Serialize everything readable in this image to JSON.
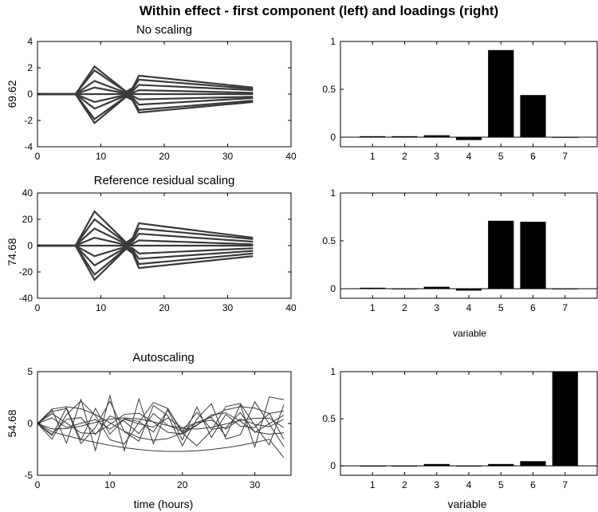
{
  "figure": {
    "title": "Within effect - first component (left) and loadings (right)",
    "line_color": "#3a3a3a",
    "bar_color": "#000000"
  },
  "chart_data": [
    {
      "id": "p1",
      "type": "line",
      "title": "No scaling",
      "ylabel": "69.62",
      "xlabel": "",
      "xlim": [
        0,
        40
      ],
      "ylim": [
        -4,
        4
      ],
      "xticks": [
        0,
        10,
        20,
        30,
        40
      ],
      "yticks": [
        -4,
        -2,
        0,
        2,
        4
      ],
      "x": [
        0,
        1,
        2,
        3,
        4,
        5,
        6,
        7,
        8,
        9,
        10,
        11,
        12,
        13,
        14,
        15,
        16,
        17,
        18,
        19,
        20,
        21,
        22,
        23,
        24,
        25,
        26,
        27,
        28,
        29,
        30,
        31,
        32,
        33,
        34
      ],
      "series_amplitudes": [
        {
          "peak9": 2.1,
          "peak16": 1.4,
          "end": 0.5
        },
        {
          "peak9": 1.8,
          "peak16": 1.1,
          "end": 0.4
        },
        {
          "peak9": 1.0,
          "peak16": 0.7,
          "end": 0.3
        },
        {
          "peak9": 0.5,
          "peak16": 0.3,
          "end": 0.1
        },
        {
          "peak9": 0.0,
          "peak16": 0.0,
          "end": 0.0
        },
        {
          "peak9": -0.6,
          "peak16": -0.4,
          "end": -0.2
        },
        {
          "peak9": -1.1,
          "peak16": -0.8,
          "end": -0.3
        },
        {
          "peak9": -1.9,
          "peak16": -1.2,
          "end": -0.5
        },
        {
          "peak9": -2.2,
          "peak16": -1.4,
          "end": -0.6
        }
      ]
    },
    {
      "id": "p2",
      "type": "bar",
      "title": "",
      "xlabel": "",
      "categories": [
        1,
        2,
        3,
        4,
        5,
        6,
        7
      ],
      "values": [
        0.01,
        0.01,
        0.02,
        -0.03,
        0.91,
        0.44,
        0.0
      ],
      "xlim": [
        0,
        8
      ],
      "ylim": [
        -0.1,
        1
      ],
      "yticks": [
        0,
        0.5,
        1
      ]
    },
    {
      "id": "p3",
      "type": "line",
      "title": "Reference residual scaling",
      "ylabel": "74.68",
      "xlabel": "",
      "xlim": [
        0,
        40
      ],
      "ylim": [
        -40,
        40
      ],
      "xticks": [
        0,
        10,
        20,
        30,
        40
      ],
      "yticks": [
        -40,
        -20,
        0,
        20,
        40
      ],
      "x": [
        0,
        1,
        2,
        3,
        4,
        5,
        6,
        7,
        8,
        9,
        10,
        11,
        12,
        13,
        14,
        15,
        16,
        17,
        18,
        19,
        20,
        21,
        22,
        23,
        24,
        25,
        26,
        27,
        28,
        29,
        30,
        31,
        32,
        33,
        34
      ],
      "series_amplitudes": [
        {
          "peak9": 26,
          "peak16": 17,
          "end": 6
        },
        {
          "peak9": 20,
          "peak16": 13,
          "end": 5
        },
        {
          "peak9": 13,
          "peak16": 9,
          "end": 3
        },
        {
          "peak9": 6,
          "peak16": 4,
          "end": 1
        },
        {
          "peak9": 0,
          "peak16": 0,
          "end": 0
        },
        {
          "peak9": -8,
          "peak16": -6,
          "end": -2
        },
        {
          "peak9": -15,
          "peak16": -10,
          "end": -4
        },
        {
          "peak9": -22,
          "peak16": -14,
          "end": -6
        },
        {
          "peak9": -26,
          "peak16": -17,
          "end": -8
        }
      ]
    },
    {
      "id": "p4",
      "type": "bar",
      "title": "",
      "xlabel": "variable",
      "categories": [
        1,
        2,
        3,
        4,
        5,
        6,
        7
      ],
      "values": [
        0.01,
        0.0,
        0.02,
        -0.02,
        0.71,
        0.7,
        0.0
      ],
      "xlim": [
        0,
        8
      ],
      "ylim": [
        -0.1,
        1
      ],
      "yticks": [
        0,
        0.5,
        1
      ]
    },
    {
      "id": "p5",
      "type": "line",
      "title": "Autoscaling",
      "ylabel": "54.68",
      "xlabel": "time (hours)",
      "xlim": [
        0,
        35
      ],
      "ylim": [
        -5,
        5
      ],
      "xticks": [
        0,
        10,
        20,
        30
      ],
      "yticks": [
        -5,
        0,
        5
      ],
      "x": [
        0,
        2,
        4,
        6,
        8,
        10,
        12,
        14,
        16,
        18,
        20,
        22,
        24,
        26,
        28,
        30,
        32,
        34
      ],
      "series_amplitudes": [
        {
          "peak9": 3.0,
          "peak16": 2.0,
          "end": 2.3
        },
        {
          "peak9": 2.4,
          "peak16": 1.6,
          "end": 1.8
        },
        {
          "peak9": 1.8,
          "peak16": 1.2,
          "end": 1.2
        },
        {
          "peak9": 1.2,
          "peak16": 0.8,
          "end": 0.8
        },
        {
          "peak9": 0.6,
          "peak16": 0.4,
          "end": 0.4
        },
        {
          "peak9": -0.6,
          "peak16": -0.4,
          "end": -0.4
        },
        {
          "peak9": -1.2,
          "peak16": -0.8,
          "end": -0.9
        },
        {
          "peak9": -1.8,
          "peak16": -1.2,
          "end": -1.5
        },
        {
          "peak9": -2.4,
          "peak16": -1.6,
          "end": -2.2
        },
        {
          "peak9": -3.0,
          "peak16": -2.0,
          "end": -3.3
        }
      ]
    },
    {
      "id": "p6",
      "type": "bar",
      "title": "",
      "xlabel": "variable",
      "categories": [
        1,
        2,
        3,
        4,
        5,
        6,
        7
      ],
      "values": [
        0.0,
        0.0,
        0.02,
        0.0,
        0.02,
        0.05,
        1.0
      ],
      "xlim": [
        0,
        8
      ],
      "ylim": [
        -0.1,
        1
      ],
      "yticks": [
        0,
        0.5,
        1
      ]
    }
  ]
}
